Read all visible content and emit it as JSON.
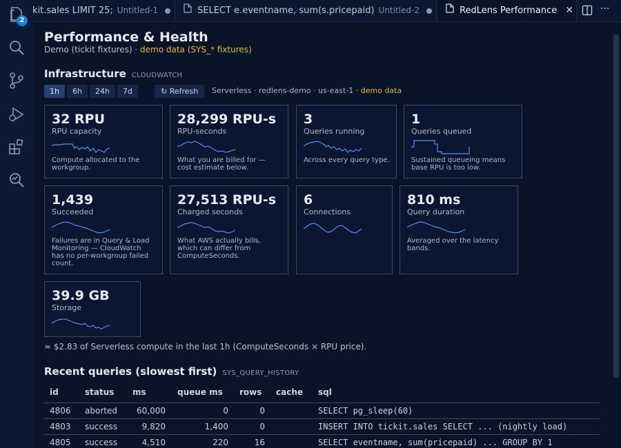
{
  "activity": {
    "explorer_badge": "2"
  },
  "tabs": [
    {
      "title": "kit.sales LIMIT 25;",
      "sub": "Untitled-1"
    },
    {
      "title": "SELECT e.eventname, sum(s.pricepaid)",
      "sub": "Untitled-2"
    },
    {
      "title": "RedLens Performance"
    }
  ],
  "page": {
    "title": "Performance & Health",
    "subtitle": "Demo (tickit fixtures) ·",
    "subtitle_demo": "demo data (SYS_* fixtures)"
  },
  "infra": {
    "heading": "Infrastructure",
    "tag": "CLOUDWATCH",
    "ranges": [
      "1h",
      "6h",
      "24h",
      "7d"
    ],
    "refresh": "↻ Refresh",
    "context": "Serverless · redlens-demo · us-east-1 ·",
    "context_demo": "demo data"
  },
  "cards": [
    {
      "value": "32 RPU",
      "label": "RPU capacity",
      "desc": "Compute allocated to the workgroup."
    },
    {
      "value": "28,299 RPU-s",
      "label": "RPU-seconds",
      "desc": "What you are billed for — cost estimate below."
    },
    {
      "value": "3",
      "label": "Queries running",
      "desc": "Across every query type."
    },
    {
      "value": "1",
      "label": "Queries queued",
      "desc": "Sustained queueing means base RPU is too low."
    },
    {
      "value": "1,439",
      "label": "Succeeded",
      "desc": "Failures are in Query & Load Monitoring — CloudWatch has no per-workgroup failed count."
    },
    {
      "value": "27,513 RPU-s",
      "label": "Charged seconds",
      "desc": "What AWS actually bills, which can differ from ComputeSeconds."
    },
    {
      "value": "6",
      "label": "Connections",
      "desc": ""
    },
    {
      "value": "810 ms",
      "label": "Query duration",
      "desc": "Averaged over the latency bands."
    },
    {
      "value": "39.9 GB",
      "label": "Storage",
      "desc": ""
    }
  ],
  "cost_note": "≈ $2.83 of Serverless compute in the last 1h (ComputeSeconds × RPU price).",
  "recent": {
    "heading": "Recent queries (slowest first)",
    "tag": "SYS_QUERY_HISTORY",
    "columns": [
      "id",
      "status",
      "ms",
      "queue ms",
      "rows",
      "cache",
      "sql"
    ],
    "rows": [
      {
        "id": "4806",
        "status": "aborted",
        "ms": "60,000",
        "queue_ms": "0",
        "rows": "0",
        "cache": "",
        "sql": "SELECT pg_sleep(60)"
      },
      {
        "id": "4803",
        "status": "success",
        "ms": "9,820",
        "queue_ms": "1,400",
        "rows": "0",
        "cache": "",
        "sql": "INSERT INTO tickit.sales SELECT ... (nightly load)"
      },
      {
        "id": "4805",
        "status": "success",
        "ms": "4,510",
        "queue_ms": "220",
        "rows": "16",
        "cache": "",
        "sql": "SELECT eventname, sum(pricepaid) ... GROUP BY 1"
      }
    ]
  },
  "colors": {
    "accent_yellow": "#e1b93b",
    "spark": "#5b8ff0",
    "background": "#0a1428"
  }
}
